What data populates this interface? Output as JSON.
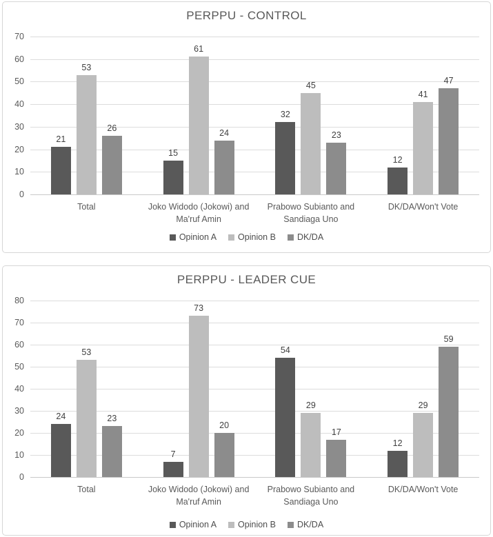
{
  "colors": {
    "series": [
      "#595959",
      "#bdbdbd",
      "#8c8c8c"
    ],
    "gridline": "#dcdcdc",
    "axis_line": "#c9c9c9",
    "title_text": "#595959",
    "tick_text": "#595959",
    "value_label_text": "#404040",
    "panel_border": "#d6d6d6",
    "background": "#ffffff"
  },
  "chart_data": [
    {
      "type": "bar",
      "title": "PERPPU - CONTROL",
      "categories": [
        "Total",
        "Joko Widodo (Jokowi) and Ma'ruf Amin",
        "Prabowo Subianto and Sandiaga Uno",
        "DK/DA/Won't Vote"
      ],
      "series": [
        {
          "name": "Opinion A",
          "values": [
            21,
            15,
            32,
            12
          ]
        },
        {
          "name": "Opinion B",
          "values": [
            53,
            61,
            45,
            41
          ]
        },
        {
          "name": "DK/DA",
          "values": [
            26,
            24,
            23,
            47
          ]
        }
      ],
      "xlabel": "",
      "ylabel": "",
      "ylim": [
        0,
        70
      ],
      "ytick_step": 10,
      "grid": true,
      "data_labels": true,
      "legend_position": "bottom"
    },
    {
      "type": "bar",
      "title": "PERPPU - LEADER CUE",
      "categories": [
        "Total",
        "Joko Widodo (Jokowi) and Ma'ruf Amin",
        "Prabowo Subianto and Sandiaga Uno",
        "DK/DA/Won't Vote"
      ],
      "series": [
        {
          "name": "Opinion A",
          "values": [
            24,
            7,
            54,
            12
          ]
        },
        {
          "name": "Opinion B",
          "values": [
            53,
            73,
            29,
            29
          ]
        },
        {
          "name": "DK/DA",
          "values": [
            23,
            20,
            17,
            59
          ]
        }
      ],
      "xlabel": "",
      "ylabel": "",
      "ylim": [
        0,
        80
      ],
      "ytick_step": 10,
      "grid": true,
      "data_labels": true,
      "legend_position": "bottom"
    }
  ]
}
